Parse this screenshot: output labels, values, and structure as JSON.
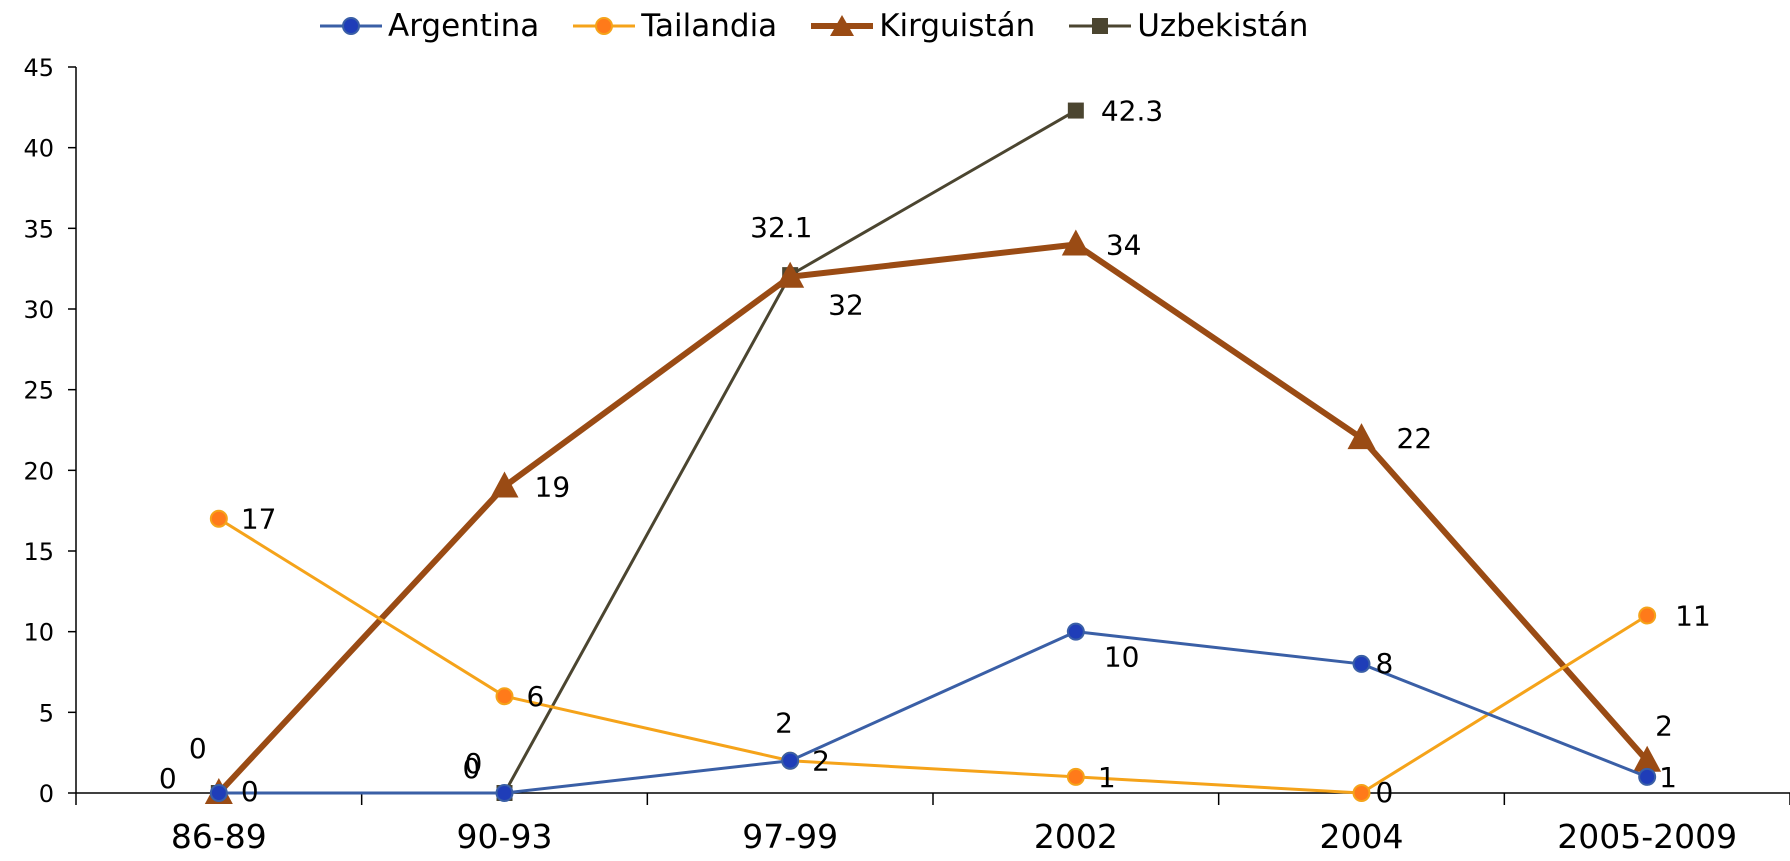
{
  "chart_data": {
    "type": "line",
    "categories": [
      "86-89",
      "90-93",
      "97-99",
      "2002",
      "2004",
      "2005-2009"
    ],
    "ylim": [
      0,
      45
    ],
    "yticks": [
      0,
      5,
      10,
      15,
      20,
      25,
      30,
      35,
      40,
      45
    ],
    "grid": false,
    "legend": "top",
    "series": [
      {
        "name": "Argentina",
        "color": "#3a5fa6",
        "marker": "circle",
        "marker_fill": "#1f3db8",
        "values": [
          0,
          0,
          2,
          10,
          8,
          1
        ],
        "labels": [
          "0",
          "0",
          "2",
          "10",
          "8",
          "1"
        ]
      },
      {
        "name": "Tailandia",
        "color": "#f5a31a",
        "marker": "circle",
        "marker_fill": "#ff7a1a",
        "values": [
          17,
          6,
          2,
          1,
          0,
          11
        ],
        "labels": [
          "17",
          "6",
          "2",
          "1",
          "0",
          "11"
        ]
      },
      {
        "name": "Kirguistán",
        "color": "#9a4b14",
        "marker": "triangle",
        "marker_fill": "#9a4b14",
        "values": [
          0,
          19,
          32,
          34,
          22,
          2
        ],
        "labels": [
          "0",
          "19",
          "32",
          "34",
          "22",
          "2"
        ]
      },
      {
        "name": "Uzbekistán",
        "color": "#4b4530",
        "marker": "square",
        "marker_fill": "#4b4530",
        "values": [
          0,
          0,
          32.1,
          42.3,
          null,
          null
        ],
        "labels": [
          "0",
          "0",
          "32.1",
          "42.3",
          null,
          null
        ]
      }
    ]
  }
}
